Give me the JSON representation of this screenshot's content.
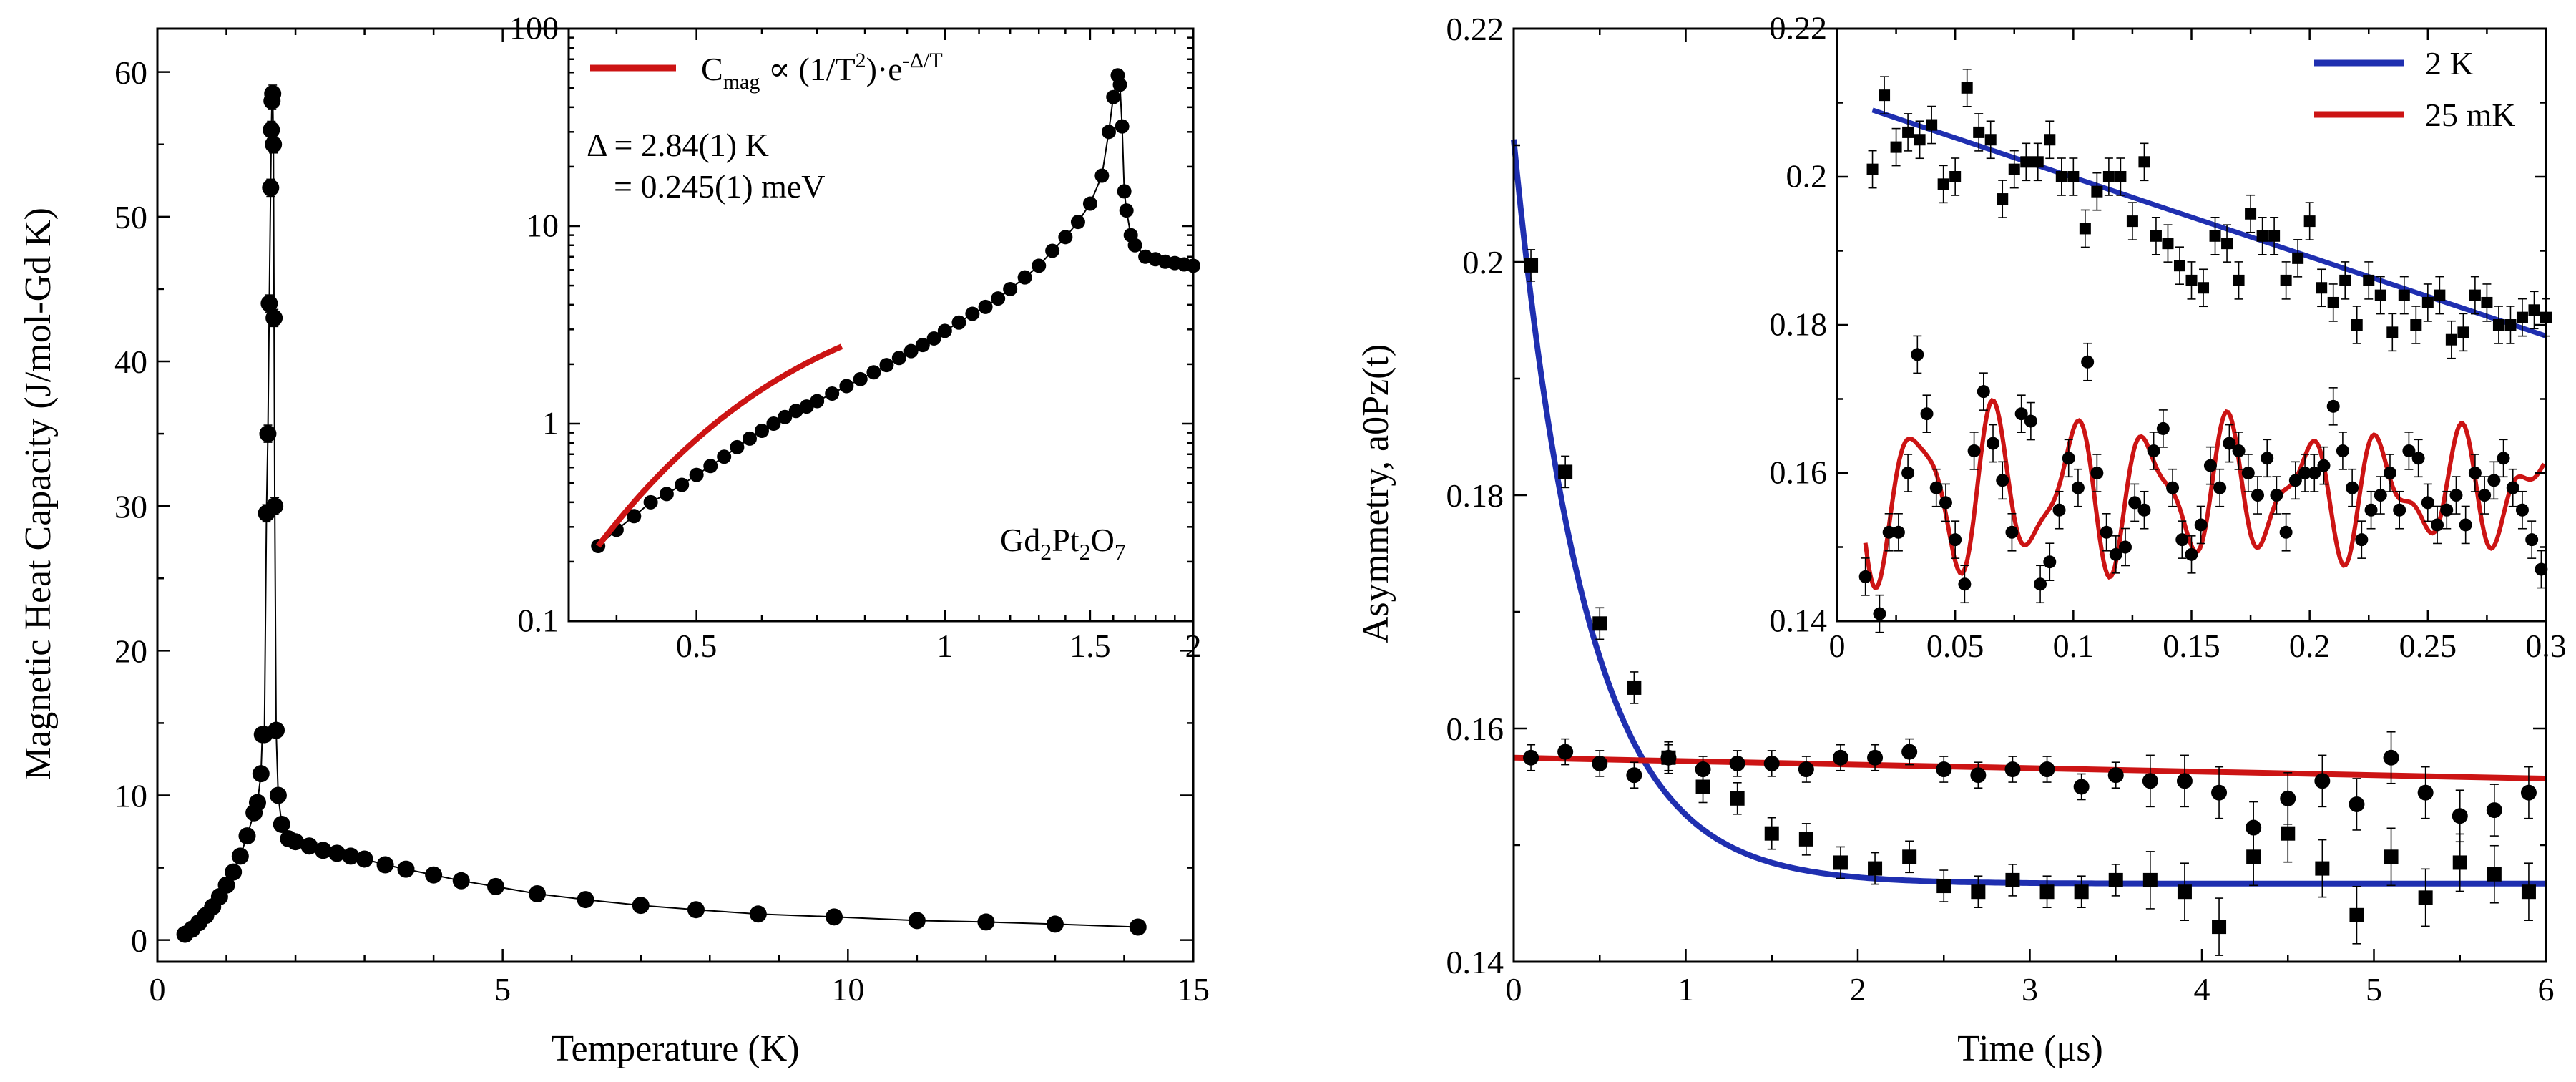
{
  "colors": {
    "blue": "#1f2fb0",
    "red": "#cc1414",
    "black": "#000000"
  },
  "chart_data": [
    {
      "type": "scatter",
      "xlabel": "Temperature (K)",
      "ylabel": "Magnetic Heat Capacity (J/mol-Gd K)",
      "xlim": [
        0,
        15
      ],
      "ylim": [
        -1.5,
        63
      ],
      "xticks": [
        0,
        5,
        10,
        15
      ],
      "yticks": [
        0,
        10,
        20,
        30,
        40,
        50,
        60
      ],
      "series": [
        {
          "x": [
            0.4,
            0.5,
            0.6,
            0.7,
            0.8,
            0.9,
            1.0,
            1.1,
            1.2,
            1.3,
            1.4,
            1.45,
            1.5,
            1.52,
            1.55,
            1.58,
            1.6,
            1.62,
            1.64,
            1.65,
            1.66,
            1.67,
            1.68,
            1.69,
            1.7,
            1.72,
            1.75,
            1.8,
            1.9,
            2.0,
            2.2,
            2.4,
            2.6,
            2.8,
            3.0,
            3.3,
            3.6,
            4.0,
            4.4,
            4.9,
            5.5,
            6.2,
            7.0,
            7.8,
            8.7,
            9.8,
            11.0,
            12.0,
            13.0,
            14.2
          ],
          "y": [
            0.4,
            0.75,
            1.2,
            1.7,
            2.3,
            3.0,
            3.8,
            4.7,
            5.8,
            7.2,
            8.8,
            9.5,
            11.5,
            14.2,
            14.2,
            29.5,
            35,
            44,
            52,
            56,
            58,
            58.5,
            55,
            43,
            30,
            14.5,
            10,
            8,
            7,
            6.8,
            6.5,
            6.2,
            6.0,
            5.8,
            5.6,
            5.2,
            4.9,
            4.5,
            4.1,
            3.7,
            3.2,
            2.8,
            2.4,
            2.1,
            1.8,
            1.6,
            1.35,
            1.25,
            1.1,
            0.9
          ]
        }
      ],
      "inset": {
        "type": "scatter",
        "scale": "log-log",
        "xlim": [
          0.35,
          2
        ],
        "ylim": [
          0.1,
          100
        ],
        "xticks": [
          0.5,
          1,
          1.5,
          2
        ],
        "xtick_labels": [
          "0.5",
          "1",
          "1.5",
          "2"
        ],
        "yticks": [
          0.1,
          1,
          10,
          100
        ],
        "ytick_labels": [
          "0.1",
          "1",
          "10",
          "100"
        ],
        "data": {
          "x": [
            0.38,
            0.4,
            0.42,
            0.44,
            0.46,
            0.48,
            0.5,
            0.52,
            0.54,
            0.56,
            0.58,
            0.6,
            0.62,
            0.64,
            0.66,
            0.68,
            0.7,
            0.73,
            0.76,
            0.79,
            0.82,
            0.85,
            0.88,
            0.91,
            0.94,
            0.97,
            1.0,
            1.04,
            1.08,
            1.12,
            1.16,
            1.2,
            1.25,
            1.3,
            1.35,
            1.4,
            1.45,
            1.5,
            1.55,
            1.58,
            1.6,
            1.62,
            1.63,
            1.64,
            1.65,
            1.66,
            1.68,
            1.7,
            1.75,
            1.8,
            1.85,
            1.9,
            1.95,
            2.0
          ],
          "y": [
            0.24,
            0.29,
            0.34,
            0.4,
            0.44,
            0.49,
            0.55,
            0.61,
            0.68,
            0.76,
            0.84,
            0.92,
            1.0,
            1.08,
            1.16,
            1.22,
            1.3,
            1.42,
            1.55,
            1.68,
            1.82,
            1.98,
            2.15,
            2.33,
            2.5,
            2.7,
            2.95,
            3.25,
            3.6,
            3.9,
            4.3,
            4.8,
            5.5,
            6.3,
            7.5,
            8.8,
            10.5,
            13,
            18,
            30,
            45,
            58,
            52,
            32,
            15,
            12,
            9,
            8,
            7,
            6.8,
            6.6,
            6.5,
            6.4,
            6.3
          ]
        },
        "fit_x": [
          0.38,
          0.75
        ],
        "legend": {
          "label": "Cmag ∝ (1/T²)·e^-Δ/T",
          "text": "C",
          "sub": "mag",
          "mid": " ∝ (1/T",
          "sup2": "2",
          "end": ")·e",
          "sup": "-Δ/T"
        },
        "annotation": [
          "Δ = 2.84(1) K",
          "= 0.245(1) meV"
        ],
        "compound": {
          "p1": "Gd",
          "s1": "2",
          "p2": "Pt",
          "s2": "2",
          "p3": "O",
          "s3": "7"
        }
      }
    },
    {
      "type": "scatter",
      "xlabel": "Time (μs)",
      "ylabel": "Asymmetry, a0Pz(t)",
      "xlim": [
        0,
        6
      ],
      "ylim": [
        0.14,
        0.22
      ],
      "xticks": [
        0,
        1,
        2,
        3,
        4,
        5,
        6
      ],
      "yticks": [
        0.14,
        0.16,
        0.18,
        0.2,
        0.22
      ],
      "ytick_labels": [
        "0.14",
        "0.16",
        "0.18",
        "0.2",
        "0.22"
      ],
      "series": [
        {
          "name": "2 K",
          "marker": "square",
          "x": [
            0.1,
            0.3,
            0.5,
            0.7,
            0.9,
            1.1,
            1.3,
            1.5,
            1.7,
            1.9,
            2.1,
            2.3,
            2.5,
            2.7,
            2.9,
            3.1,
            3.3,
            3.5,
            3.7,
            3.9,
            4.1,
            4.3,
            4.5,
            4.7,
            4.9,
            5.1,
            5.3,
            5.5,
            5.7,
            5.9
          ],
          "y": [
            0.1997,
            0.182,
            0.169,
            0.1635,
            0.1575,
            0.155,
            0.154,
            0.151,
            0.1505,
            0.1485,
            0.148,
            0.149,
            0.1465,
            0.146,
            0.147,
            0.146,
            0.146,
            0.147,
            0.147,
            0.146,
            0.143,
            0.149,
            0.151,
            0.148,
            0.144,
            0.149,
            0.1455,
            0.1485,
            0.1475,
            0.146
          ],
          "fit": {
            "A": 0.0638,
            "tau": 0.42,
            "base": 0.1467
          }
        },
        {
          "name": "25 mK",
          "marker": "circle",
          "x": [
            0.1,
            0.3,
            0.5,
            0.7,
            0.9,
            1.1,
            1.3,
            1.5,
            1.7,
            1.9,
            2.1,
            2.3,
            2.5,
            2.7,
            2.9,
            3.1,
            3.3,
            3.5,
            3.7,
            3.9,
            4.1,
            4.3,
            4.5,
            4.7,
            4.9,
            5.1,
            5.3,
            5.5,
            5.7,
            5.9
          ],
          "y": [
            0.1575,
            0.158,
            0.157,
            0.156,
            0.1575,
            0.1565,
            0.157,
            0.157,
            0.1565,
            0.1575,
            0.1575,
            0.158,
            0.1565,
            0.156,
            0.1565,
            0.1565,
            0.155,
            0.156,
            0.1555,
            0.1555,
            0.1545,
            0.1515,
            0.154,
            0.1555,
            0.1535,
            0.1575,
            0.1545,
            0.1525,
            0.153,
            0.1545
          ],
          "fit": {
            "y0": 0.1575,
            "y1": 0.1557
          }
        }
      ],
      "inset": {
        "xlim": [
          0,
          0.3
        ],
        "ylim": [
          0.14,
          0.22
        ],
        "xticks": [
          0,
          0.05,
          0.1,
          0.15,
          0.2,
          0.25,
          0.3
        ],
        "xtick_labels": [
          "0",
          "0.05",
          "0.1",
          "0.15",
          "0.2",
          "0.25",
          "0.3"
        ],
        "yticks": [
          0.14,
          0.16,
          0.18,
          0.2,
          0.22
        ],
        "ytick_labels": [
          "0.14",
          "0.16",
          "0.18",
          "0.2",
          "0.22"
        ],
        "legend": [
          "2 K",
          "25 mK"
        ],
        "square_series": {
          "x": [
            0.015,
            0.02,
            0.025,
            0.03,
            0.035,
            0.04,
            0.045,
            0.05,
            0.055,
            0.06,
            0.065,
            0.07,
            0.075,
            0.08,
            0.085,
            0.09,
            0.095,
            0.1,
            0.105,
            0.11,
            0.115,
            0.12,
            0.125,
            0.13,
            0.135,
            0.14,
            0.145,
            0.15,
            0.155,
            0.16,
            0.165,
            0.17,
            0.175,
            0.18,
            0.185,
            0.19,
            0.195,
            0.2,
            0.205,
            0.21,
            0.215,
            0.22,
            0.225,
            0.23,
            0.235,
            0.24,
            0.245,
            0.25,
            0.255,
            0.26,
            0.265,
            0.27,
            0.275,
            0.28,
            0.285,
            0.29,
            0.295,
            0.3
          ],
          "y": [
            0.201,
            0.211,
            0.204,
            0.206,
            0.205,
            0.207,
            0.199,
            0.2,
            0.212,
            0.206,
            0.205,
            0.197,
            0.201,
            0.202,
            0.202,
            0.205,
            0.2,
            0.2,
            0.193,
            0.198,
            0.2,
            0.2,
            0.194,
            0.202,
            0.192,
            0.191,
            0.188,
            0.186,
            0.185,
            0.192,
            0.191,
            0.186,
            0.195,
            0.192,
            0.192,
            0.186,
            0.189,
            0.194,
            0.185,
            0.183,
            0.186,
            0.18,
            0.186,
            0.184,
            0.179,
            0.184,
            0.18,
            0.183,
            0.184,
            0.178,
            0.179,
            0.184,
            0.183,
            0.18,
            0.18,
            0.181,
            0.182,
            0.181
          ],
          "fit": [
            0.209,
            0.1785
          ]
        },
        "circle_series": {
          "x": [
            0.012,
            0.018,
            0.022,
            0.026,
            0.03,
            0.034,
            0.038,
            0.042,
            0.046,
            0.05,
            0.054,
            0.058,
            0.062,
            0.066,
            0.07,
            0.074,
            0.078,
            0.082,
            0.086,
            0.09,
            0.094,
            0.098,
            0.102,
            0.106,
            0.11,
            0.114,
            0.118,
            0.122,
            0.126,
            0.13,
            0.134,
            0.138,
            0.142,
            0.146,
            0.15,
            0.154,
            0.158,
            0.162,
            0.166,
            0.17,
            0.174,
            0.178,
            0.182,
            0.186,
            0.19,
            0.194,
            0.198,
            0.202,
            0.206,
            0.21,
            0.214,
            0.218,
            0.222,
            0.226,
            0.23,
            0.234,
            0.238,
            0.242,
            0.246,
            0.25,
            0.254,
            0.258,
            0.262,
            0.266,
            0.27,
            0.274,
            0.278,
            0.282,
            0.286,
            0.29,
            0.294,
            0.298
          ],
          "y": [
            0.146,
            0.141,
            0.152,
            0.152,
            0.16,
            0.176,
            0.168,
            0.158,
            0.156,
            0.151,
            0.145,
            0.163,
            0.171,
            0.164,
            0.159,
            0.152,
            0.168,
            0.167,
            0.145,
            0.148,
            0.155,
            0.162,
            0.158,
            0.175,
            0.16,
            0.152,
            0.149,
            0.15,
            0.156,
            0.155,
            0.163,
            0.166,
            0.158,
            0.151,
            0.149,
            0.153,
            0.161,
            0.158,
            0.164,
            0.163,
            0.16,
            0.157,
            0.162,
            0.157,
            0.152,
            0.159,
            0.16,
            0.16,
            0.161,
            0.169,
            0.163,
            0.158,
            0.151,
            0.155,
            0.157,
            0.16,
            0.155,
            0.163,
            0.162,
            0.156,
            0.153,
            0.155,
            0.157,
            0.153,
            0.16,
            0.157,
            0.159,
            0.162,
            0.158,
            0.155,
            0.151,
            0.147
          ],
          "fit": {
            "base": 0.1575,
            "amp1": 0.0105,
            "f1": 30.5,
            "amp2": 0.0035,
            "f2": 50,
            "decay": 2.2
          }
        }
      }
    }
  ]
}
